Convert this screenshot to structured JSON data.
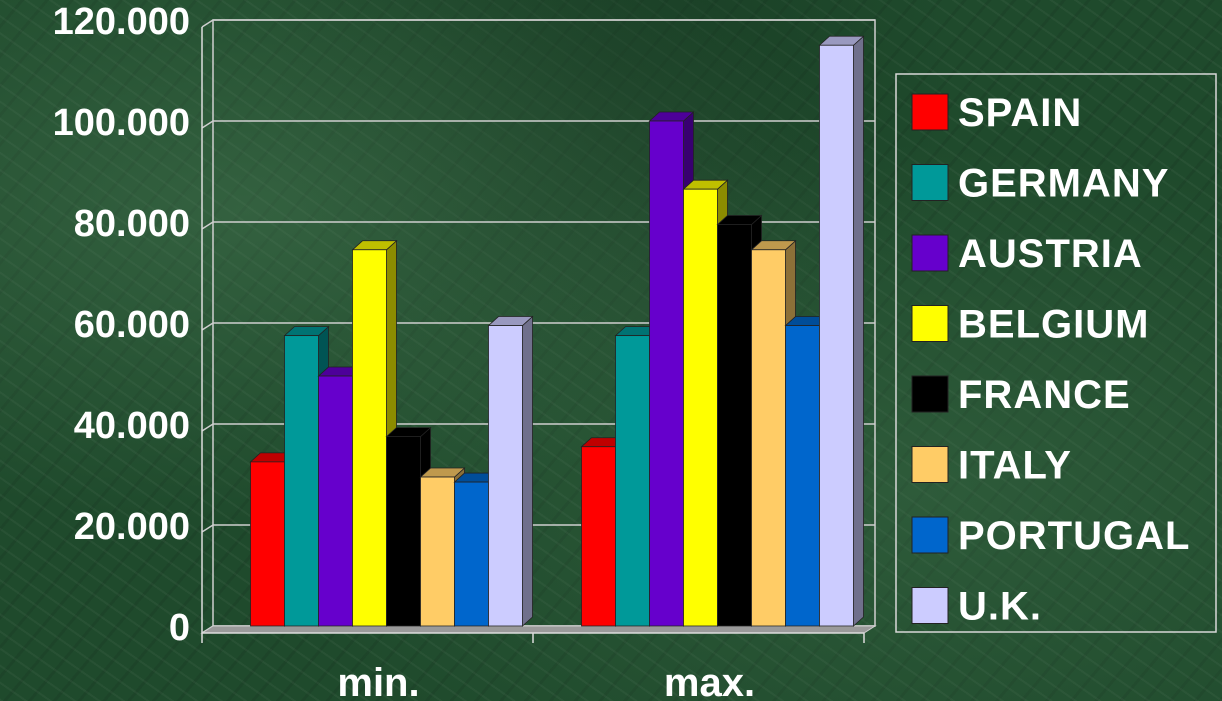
{
  "chart_data": {
    "type": "bar",
    "title": "",
    "xlabel": "",
    "ylabel": "",
    "ylim": [
      0,
      120000
    ],
    "y_ticks": [
      "0",
      "20.000",
      "40.000",
      "60.000",
      "80.000",
      "100.000",
      "120.000"
    ],
    "y_tick_values": [
      0,
      20000,
      40000,
      60000,
      80000,
      100000,
      120000
    ],
    "categories": [
      "min.",
      "max."
    ],
    "grid": true,
    "legend_position": "right",
    "series": [
      {
        "name": "SPAIN",
        "color": "#ff0000",
        "values": [
          32500,
          35500
        ]
      },
      {
        "name": "GERMANY",
        "color": "#009999",
        "values": [
          57500,
          57500
        ]
      },
      {
        "name": "AUSTRIA",
        "color": "#6600cc",
        "values": [
          49500,
          100000
        ]
      },
      {
        "name": "BELGIUM",
        "color": "#ffff00",
        "values": [
          74500,
          86500
        ]
      },
      {
        "name": "FRANCE",
        "color": "#000000",
        "values": [
          37500,
          79500
        ]
      },
      {
        "name": "ITALY",
        "color": "#ffcc66",
        "values": [
          29500,
          74500
        ]
      },
      {
        "name": "PORTUGAL",
        "color": "#0066cc",
        "values": [
          28500,
          59500
        ]
      },
      {
        "name": "U.K.",
        "color": "#ccccff",
        "values": [
          59500,
          115000
        ]
      }
    ]
  }
}
